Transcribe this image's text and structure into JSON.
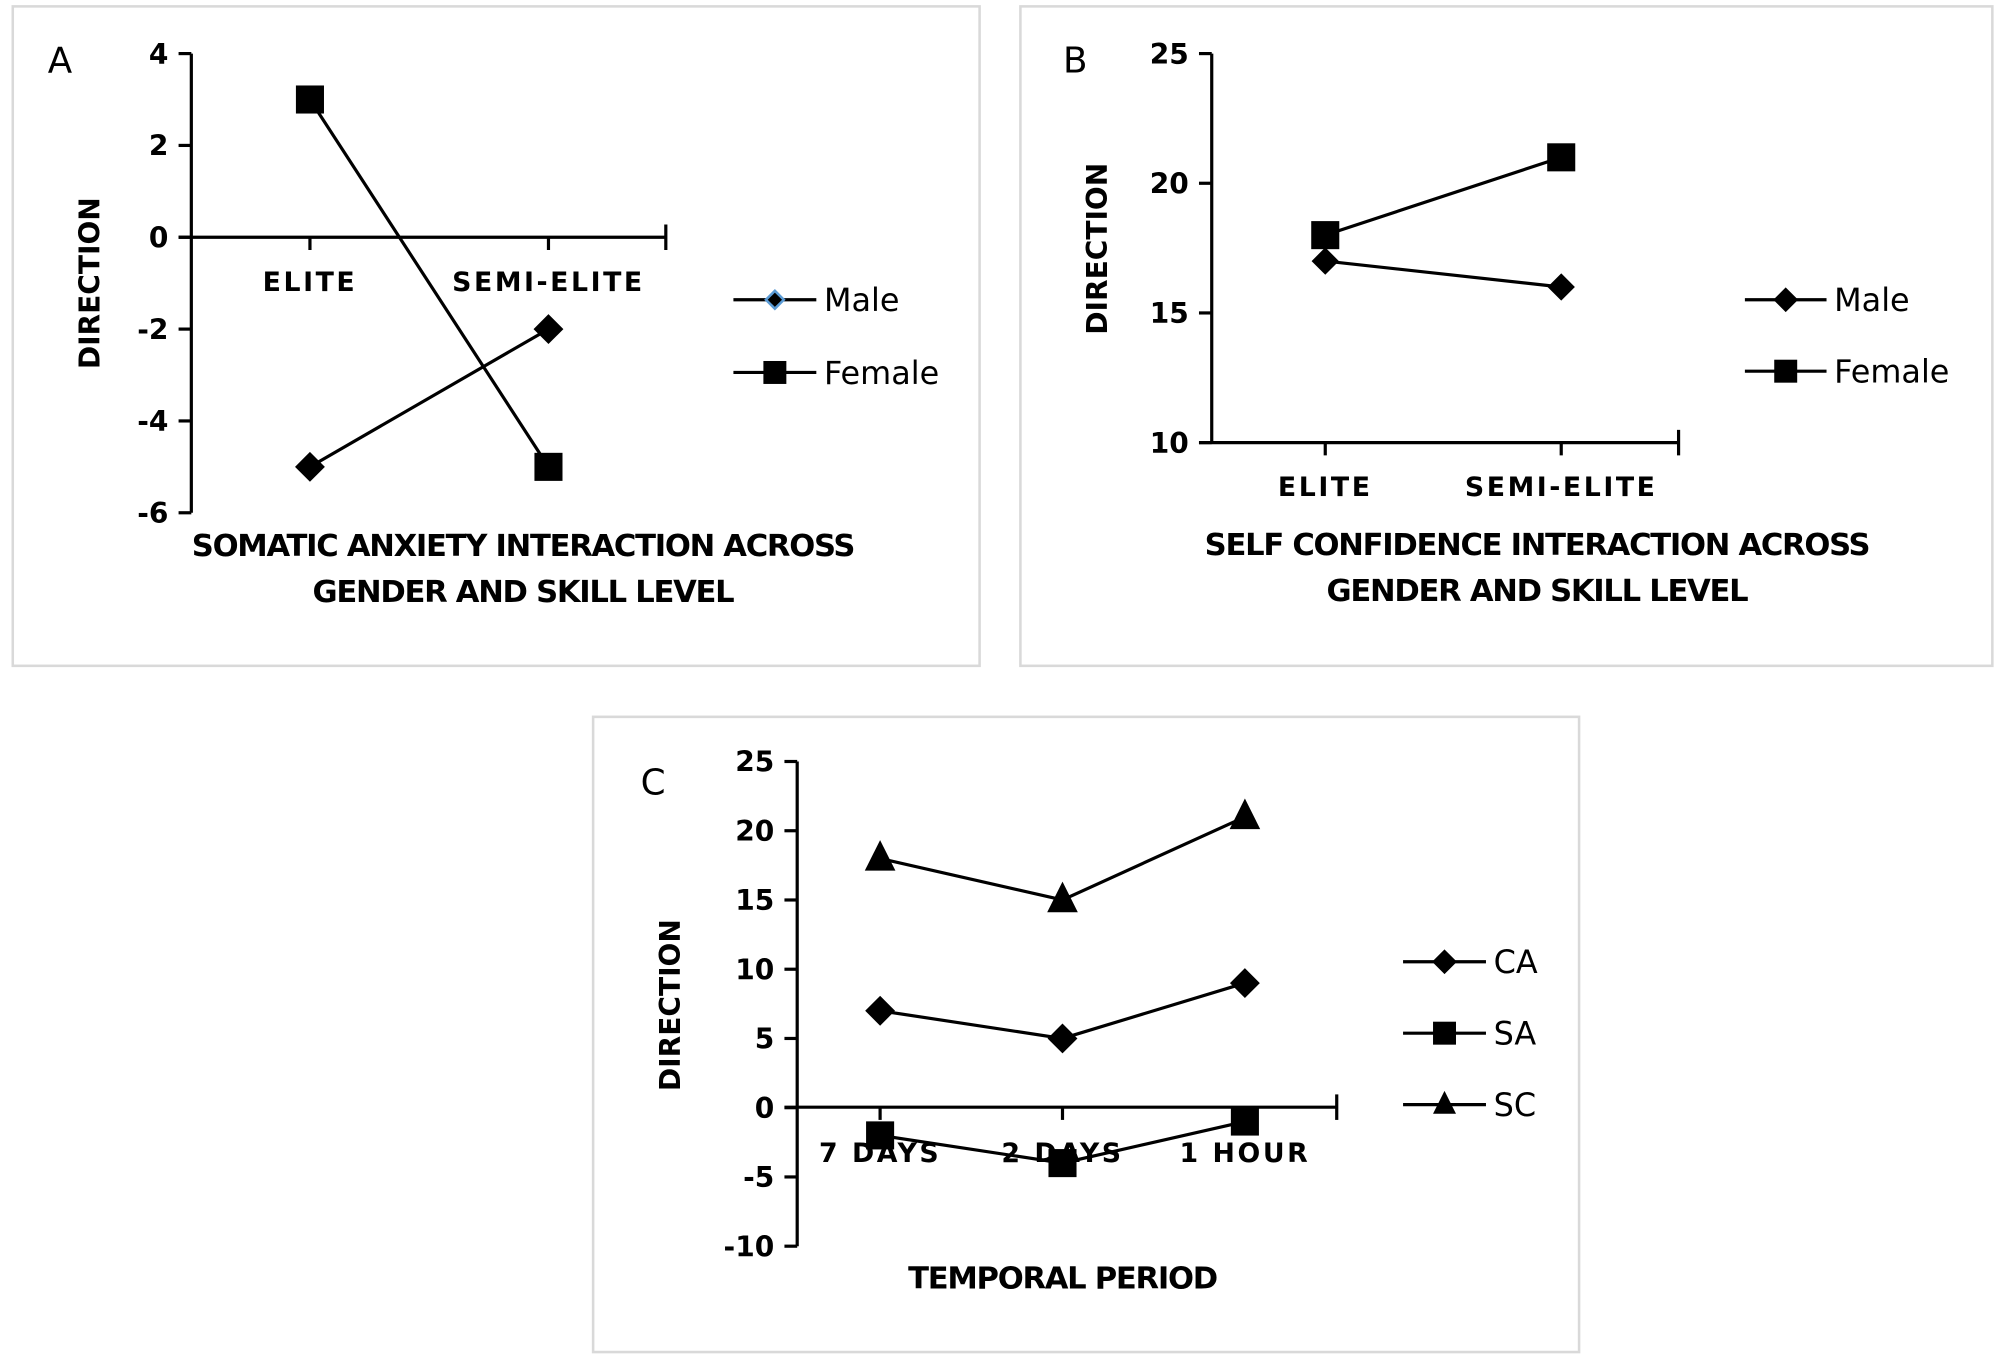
{
  "chart_data": [
    {
      "type": "line",
      "panel": "A",
      "title_lines": [
        "SOMATIC ANXIETY INTERACTION ACROSS",
        "GENDER AND SKILL LEVEL"
      ],
      "ylabel": "DIRECTION",
      "categories": [
        "ELITE",
        "SEMI-ELITE"
      ],
      "ylim": [
        -6,
        4
      ],
      "yticks": [
        4,
        2,
        0,
        -2,
        -4,
        -6
      ],
      "legend_position": "right",
      "series": [
        {
          "name": "Male",
          "marker": "diamond",
          "values": [
            -5,
            -2
          ]
        },
        {
          "name": "Female",
          "marker": "square",
          "values": [
            3,
            -5
          ]
        }
      ]
    },
    {
      "type": "line",
      "panel": "B",
      "title_lines": [
        "SELF CONFIDENCE INTERACTION ACROSS",
        "GENDER AND SKILL LEVEL"
      ],
      "ylabel": "DIRECTION",
      "categories": [
        "ELITE",
        "SEMI-ELITE"
      ],
      "ylim": [
        10,
        25
      ],
      "yticks": [
        25,
        20,
        15,
        10
      ],
      "legend_position": "right",
      "series": [
        {
          "name": "Male",
          "marker": "diamond",
          "values": [
            17,
            16
          ]
        },
        {
          "name": "Female",
          "marker": "square",
          "values": [
            18,
            21
          ]
        }
      ]
    },
    {
      "type": "line",
      "panel": "C",
      "title_lines": [
        "TEMPORAL PERIOD"
      ],
      "ylabel": "DIRECTION",
      "categories": [
        "7 DAYS",
        "2 DAYS",
        "1 HOUR"
      ],
      "ylim": [
        -10,
        25
      ],
      "yticks": [
        25,
        20,
        15,
        10,
        5,
        0,
        -5,
        -10
      ],
      "legend_position": "right",
      "series": [
        {
          "name": "CA",
          "marker": "diamond",
          "values": [
            7,
            5,
            9
          ]
        },
        {
          "name": "SA",
          "marker": "square",
          "values": [
            -2,
            -4,
            -1
          ]
        },
        {
          "name": "SC",
          "marker": "triangle",
          "values": [
            18,
            15,
            21
          ]
        }
      ]
    }
  ],
  "colors": {
    "line": "#000000",
    "panel_border": "#d9d9d9",
    "male_legend_outline": "#5b9bd5"
  }
}
